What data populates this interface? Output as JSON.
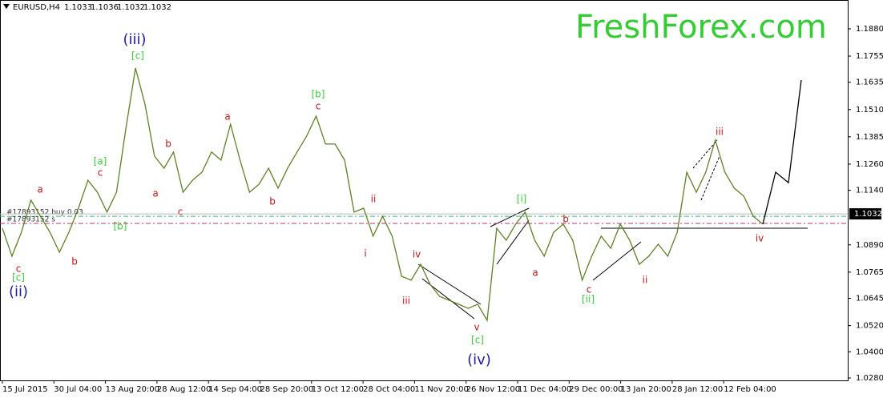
{
  "chart_data": {
    "type": "line",
    "symbol": "EURUSD,H4",
    "ohlc": [
      1.1033,
      1.1036,
      1.1032,
      1.1032
    ],
    "watermark": "FreshForex.com",
    "last_price": 1.1032,
    "ylim": [
      1.0269,
      1.2012
    ],
    "yticks": [
      {
        "value": 1.188,
        "label": "1.1880"
      },
      {
        "value": 1.1755,
        "label": "1.1755"
      },
      {
        "value": 1.1635,
        "label": "1.1635"
      },
      {
        "value": 1.151,
        "label": "1.1510"
      },
      {
        "value": 1.1385,
        "label": "1.1385"
      },
      {
        "value": 1.126,
        "label": "1.1260"
      },
      {
        "value": 1.114,
        "label": "1.1140"
      },
      {
        "value": 1.089,
        "label": "1.0890"
      },
      {
        "value": 1.0765,
        "label": "1.0765"
      },
      {
        "value": 1.0645,
        "label": "1.0645"
      },
      {
        "value": 1.052,
        "label": "1.0520"
      },
      {
        "value": 1.04,
        "label": "1.0400"
      },
      {
        "value": 1.028,
        "label": "1.0280"
      }
    ],
    "xticks": [
      "15 Jul 2015",
      "30 Jul 04:00",
      "13 Aug 20:00",
      "28 Aug 12:00",
      "14 Sep 04:00",
      "28 Sep 20:00",
      "13 Oct 12:00",
      "28 Oct 04:00",
      "11 Nov 20:00",
      "26 Nov 12:00",
      "11 Dec 04:00",
      "29 Dec 00:00",
      "13 Jan 20:00",
      "28 Jan 12:00",
      "12 Feb 04:00"
    ],
    "series": [
      {
        "name": "EURUSD",
        "color": "#5f7f26",
        "values": [
          1.0966,
          1.0838,
          1.0948,
          1.1095,
          1.1021,
          1.0948,
          1.0856,
          1.0948,
          1.1058,
          1.1186,
          1.1131,
          1.104,
          1.1131,
          1.1425,
          1.17,
          1.1535,
          1.1297,
          1.1241,
          1.1315,
          1.1131,
          1.1186,
          1.1223,
          1.1315,
          1.1278,
          1.1443,
          1.1278,
          1.1131,
          1.1168,
          1.1241,
          1.115,
          1.1241,
          1.1315,
          1.1388,
          1.148,
          1.1352,
          1.1352,
          1.1278,
          1.104,
          1.1058,
          1.093,
          1.1021,
          1.093,
          1.0746,
          1.0728,
          1.0801,
          1.0709,
          1.0654,
          1.0636,
          1.0618,
          1.0599,
          1.0618,
          1.0544,
          1.0966,
          1.0911,
          1.0985,
          1.104,
          1.0911,
          1.0838,
          1.0948,
          1.0985,
          1.0911,
          1.0728,
          1.0838,
          1.093,
          1.0874,
          1.0985,
          1.0911,
          1.0801,
          1.0838,
          1.0893,
          1.0838,
          1.0948,
          1.1223,
          1.1131,
          1.1223,
          1.137,
          1.1223,
          1.115,
          1.1113,
          1.1021,
          1.0985
        ]
      },
      {
        "name": "forecast",
        "color": "#000000",
        "values": [
          1.0985,
          1.1223,
          1.1175,
          1.1645
        ]
      }
    ],
    "levels": [
      {
        "name": "#17893152 buy 0.03",
        "value": 1.1021,
        "color": "#3cb371"
      },
      {
        "name": "#17893152 s",
        "value": 1.0988,
        "color": "#c03070"
      }
    ],
    "support": 1.0966,
    "wave_labels": [
      {
        "text": "(iii)",
        "color": "#1e1ea0"
      },
      {
        "text": "[c]",
        "color": "#3ccc3c"
      },
      {
        "text": "(ii)",
        "color": "#1e1ea0"
      },
      {
        "text": "[c]",
        "color": "#3ccc3c"
      },
      {
        "text": "c",
        "color": "#c01818"
      },
      {
        "text": "a",
        "color": "#c01818"
      },
      {
        "text": "b",
        "color": "#c01818"
      },
      {
        "text": "[a]",
        "color": "#3ccc3c"
      },
      {
        "text": "c",
        "color": "#c01818"
      },
      {
        "text": "[b]",
        "color": "#3ccc3c"
      },
      {
        "text": "a",
        "color": "#c01818"
      },
      {
        "text": "b",
        "color": "#c01818"
      },
      {
        "text": "c",
        "color": "#c01818"
      },
      {
        "text": "a",
        "color": "#c01818"
      },
      {
        "text": "b",
        "color": "#c01818"
      },
      {
        "text": "[b]",
        "color": "#3ccc3c"
      },
      {
        "text": "c",
        "color": "#c01818"
      },
      {
        "text": "ii",
        "color": "#c01818"
      },
      {
        "text": "i",
        "color": "#c01818"
      },
      {
        "text": "iv",
        "color": "#c01818"
      },
      {
        "text": "iii",
        "color": "#c01818"
      },
      {
        "text": "v",
        "color": "#c01818"
      },
      {
        "text": "[c]",
        "color": "#3ccc3c"
      },
      {
        "text": "(iv)",
        "color": "#1e1ea0"
      },
      {
        "text": "[i]",
        "color": "#3ccc3c"
      },
      {
        "text": "a",
        "color": "#c01818"
      },
      {
        "text": "b",
        "color": "#c01818"
      },
      {
        "text": "c",
        "color": "#c01818"
      },
      {
        "text": "[ii]",
        "color": "#3ccc3c"
      },
      {
        "text": "ii",
        "color": "#c01818"
      },
      {
        "text": "iii",
        "color": "#c01818"
      },
      {
        "text": "iv",
        "color": "#c01818"
      }
    ]
  }
}
